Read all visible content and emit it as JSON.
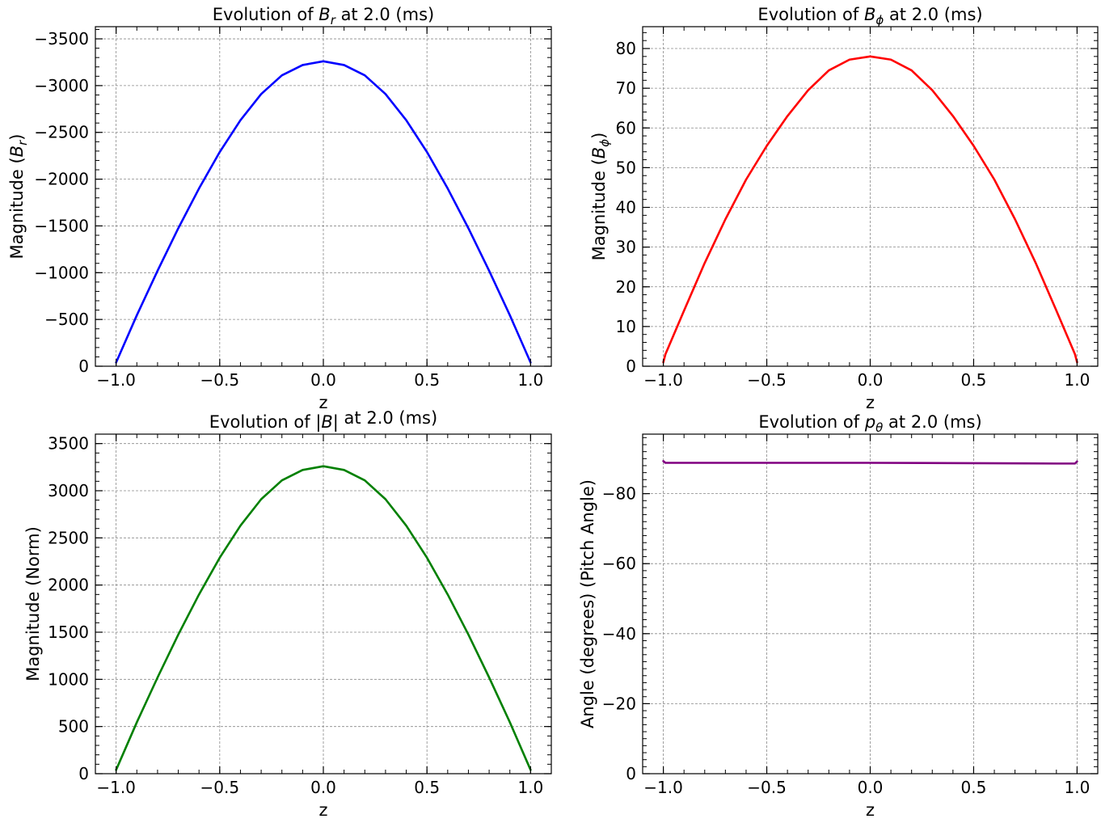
{
  "chart_data": [
    {
      "type": "line",
      "title": "Evolution of B_r at 2.0 (ms)",
      "title_parts": [
        "Evolution of ",
        "B",
        "r",
        " at 2.0 (ms)"
      ],
      "xlabel": "z",
      "ylabel": "Magnitude (B_r)",
      "ylabel_parts": [
        "Magnitude (",
        "B",
        "r",
        ")"
      ],
      "xlim": [
        -1.1,
        1.1
      ],
      "ylim": [
        0,
        -3630
      ],
      "y_inverted": true,
      "xticks": [
        -1.0,
        -0.5,
        0.0,
        0.5,
        1.0
      ],
      "xtick_labels": [
        "−1.0",
        "−0.5",
        "0.0",
        "0.5",
        "1.0"
      ],
      "yticks": [
        0,
        -500,
        -1000,
        -1500,
        -2000,
        -2500,
        -3000,
        -3500
      ],
      "ytick_labels": [
        "0",
        "−500",
        "−1000",
        "−1500",
        "−2000",
        "−2500",
        "−3000",
        "−3500"
      ],
      "grid": true,
      "series": [
        {
          "color": "#0000ff",
          "x": [
            -1.0,
            -0.9,
            -0.8,
            -0.7,
            -0.6,
            -0.5,
            -0.4,
            -0.3,
            -0.2,
            -0.1,
            0.0,
            0.1,
            0.2,
            0.3,
            0.4,
            0.5,
            0.6,
            0.7,
            0.8,
            0.9,
            1.0
          ],
          "y": [
            -40,
            -545,
            -1020,
            -1475,
            -1900,
            -2290,
            -2630,
            -2910,
            -3110,
            -3220,
            -3260,
            -3220,
            -3110,
            -2910,
            -2630,
            -2290,
            -1900,
            -1475,
            -1020,
            -545,
            -40
          ]
        }
      ]
    },
    {
      "type": "line",
      "title": "Evolution of B_ϕ at 2.0 (ms)",
      "title_parts": [
        "Evolution of ",
        "B",
        "ϕ",
        " at 2.0 (ms)"
      ],
      "xlabel": "z",
      "ylabel": "Magnitude (B_ϕ)",
      "ylabel_parts": [
        "Magnitude (",
        "B",
        "ϕ",
        ")"
      ],
      "xlim": [
        -1.1,
        1.1
      ],
      "ylim": [
        0,
        85.5
      ],
      "y_inverted": false,
      "xticks": [
        -1.0,
        -0.5,
        0.0,
        0.5,
        1.0
      ],
      "xtick_labels": [
        "−1.0",
        "−0.5",
        "0.0",
        "0.5",
        "1.0"
      ],
      "yticks": [
        0,
        10,
        20,
        30,
        40,
        50,
        60,
        70,
        80
      ],
      "ytick_labels": [
        "0",
        "10",
        "20",
        "30",
        "40",
        "50",
        "60",
        "70",
        "80"
      ],
      "grid": true,
      "series": [
        {
          "color": "#ff0000",
          "x": [
            -1.0,
            -0.99,
            -0.9,
            -0.8,
            -0.7,
            -0.6,
            -0.5,
            -0.4,
            -0.3,
            -0.2,
            -0.1,
            0.0,
            0.1,
            0.2,
            0.3,
            0.4,
            0.5,
            0.6,
            0.7,
            0.8,
            0.9,
            0.99,
            1.0
          ],
          "y": [
            1,
            3,
            14,
            26,
            37,
            47,
            55.5,
            63,
            69.5,
            74.5,
            77.2,
            78,
            77.2,
            74.5,
            69.5,
            63,
            55.5,
            47,
            37,
            26,
            14,
            3,
            1
          ]
        }
      ]
    },
    {
      "type": "line",
      "title": "Evolution of |B| at 2.0 (ms)",
      "title_parts": [
        "Evolution of ",
        "|B|",
        "",
        " at 2.0 (ms)"
      ],
      "xlabel": "z",
      "ylabel": "Magnitude (Norm)",
      "ylabel_parts": [
        "Magnitude (Norm)",
        "",
        "",
        ""
      ],
      "xlim": [
        -1.1,
        1.1
      ],
      "ylim": [
        0,
        3600
      ],
      "y_inverted": false,
      "xticks": [
        -1.0,
        -0.5,
        0.0,
        0.5,
        1.0
      ],
      "xtick_labels": [
        "−1.0",
        "−0.5",
        "0.0",
        "0.5",
        "1.0"
      ],
      "yticks": [
        0,
        500,
        1000,
        1500,
        2000,
        2500,
        3000,
        3500
      ],
      "ytick_labels": [
        "0",
        "500",
        "1000",
        "1500",
        "2000",
        "2500",
        "3000",
        "3500"
      ],
      "grid": true,
      "series": [
        {
          "color": "#008000",
          "x": [
            -1.0,
            -0.9,
            -0.8,
            -0.7,
            -0.6,
            -0.5,
            -0.4,
            -0.3,
            -0.2,
            -0.1,
            0.0,
            0.1,
            0.2,
            0.3,
            0.4,
            0.5,
            0.6,
            0.7,
            0.8,
            0.9,
            1.0
          ],
          "y": [
            40,
            545,
            1020,
            1475,
            1900,
            2290,
            2630,
            2910,
            3110,
            3220,
            3260,
            3220,
            3110,
            2910,
            2630,
            2290,
            1900,
            1475,
            1020,
            545,
            40
          ]
        }
      ]
    },
    {
      "type": "line",
      "title": "Evolution of p_θ at 2.0 (ms)",
      "title_parts": [
        "Evolution of ",
        "p",
        "θ",
        " at 2.0 (ms)"
      ],
      "xlabel": "z",
      "ylabel": "Angle (degrees) (Pitch Angle)",
      "ylabel_parts": [
        "Angle (degrees) (Pitch Angle)",
        "",
        "",
        ""
      ],
      "xlim": [
        -1.1,
        1.1
      ],
      "ylim": [
        0,
        -97
      ],
      "y_inverted": true,
      "xticks": [
        -1.0,
        -0.5,
        0.0,
        0.5,
        1.0
      ],
      "xtick_labels": [
        "−1.0",
        "−0.5",
        "0.0",
        "0.5",
        "1.0"
      ],
      "yticks": [
        0,
        -20,
        -40,
        -60,
        -80
      ],
      "ytick_labels": [
        "0",
        "−20",
        "−40",
        "−60",
        "−80"
      ],
      "grid": true,
      "series": [
        {
          "color": "#800080",
          "x": [
            -1.0,
            -0.99,
            -0.9,
            -0.5,
            0.0,
            0.5,
            0.9,
            0.99,
            1.0
          ],
          "y": [
            -89.3,
            -88.8,
            -88.8,
            -88.8,
            -88.8,
            -88.7,
            -88.6,
            -88.6,
            -89.2
          ]
        }
      ]
    }
  ]
}
